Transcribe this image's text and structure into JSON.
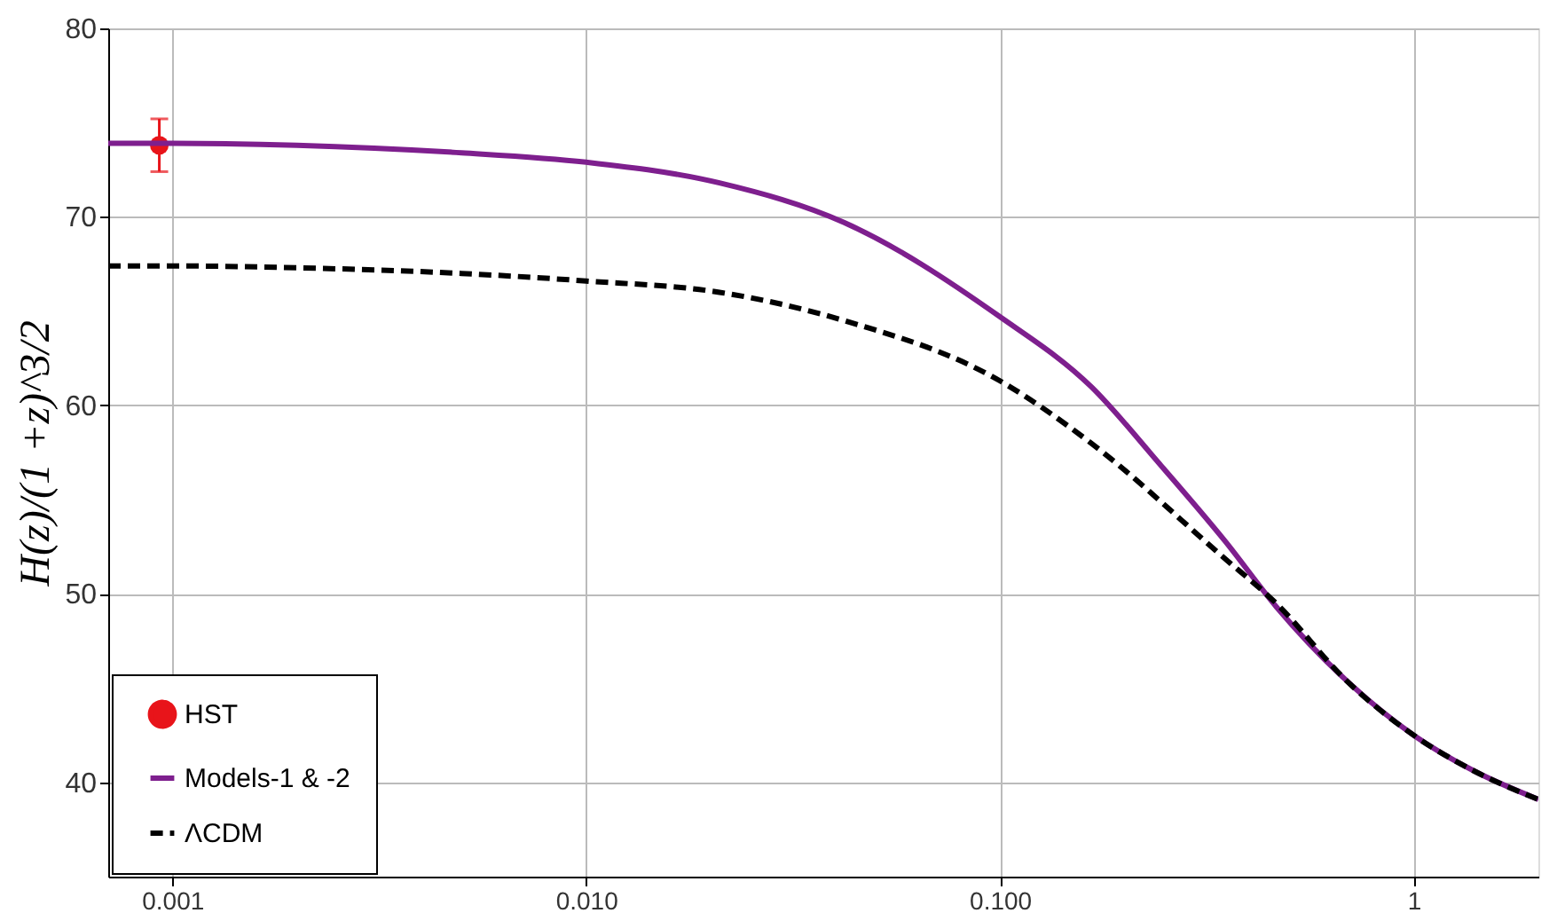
{
  "chart_data": {
    "type": "line",
    "ylabel": "H(z)/(1 +z)^3/2",
    "log": "x",
    "grid": true,
    "legend": "bottom left",
    "xlim": [
      0.0007,
      2
    ],
    "xticks": [
      0.001,
      {
        "value": 0.01,
        "label": "0.010"
      },
      {
        "value": 0.1,
        "label": "0.100"
      },
      1
    ],
    "ylim": [
      35,
      80
    ],
    "yticks": [
      40,
      50,
      60,
      70,
      80
    ],
    "series": [
      {
        "name": "HST",
        "type": "scatter",
        "marker": "circle",
        "color": "#e8141a",
        "x": [
          0.00093
        ],
        "values": [
          73.8
        ],
        "errors": [
          1.4
        ]
      },
      {
        "name": "Models-1 & -2",
        "line_style": "solid",
        "color": "#7e1f8e",
        "x": [
          0.0007,
          0.001,
          0.002,
          0.005,
          0.01,
          0.021,
          0.042,
          0.1,
          0.166,
          0.243,
          0.35,
          0.466,
          0.68,
          1,
          1.4,
          2
        ],
        "values": [
          73.9,
          73.9,
          73.8,
          73.4,
          72.9,
          71.8,
          69.7,
          64.7,
          61.0,
          56.9,
          52.8,
          49.3,
          45.5,
          42.5,
          40.6,
          39.1
        ]
      },
      {
        "name": "ΛCDM",
        "line_style": "dashed",
        "color": "#000000",
        "x": [
          0.0007,
          0.001,
          0.002,
          0.005,
          0.01,
          0.021,
          0.042,
          0.1,
          0.166,
          0.34,
          0.47,
          0.68,
          1,
          1.4,
          2
        ],
        "values": [
          67.4,
          67.4,
          67.3,
          67.0,
          66.6,
          66.0,
          64.5,
          61.3,
          58.0,
          52.1,
          49.4,
          45.5,
          42.5,
          40.6,
          39.1
        ]
      }
    ]
  }
}
